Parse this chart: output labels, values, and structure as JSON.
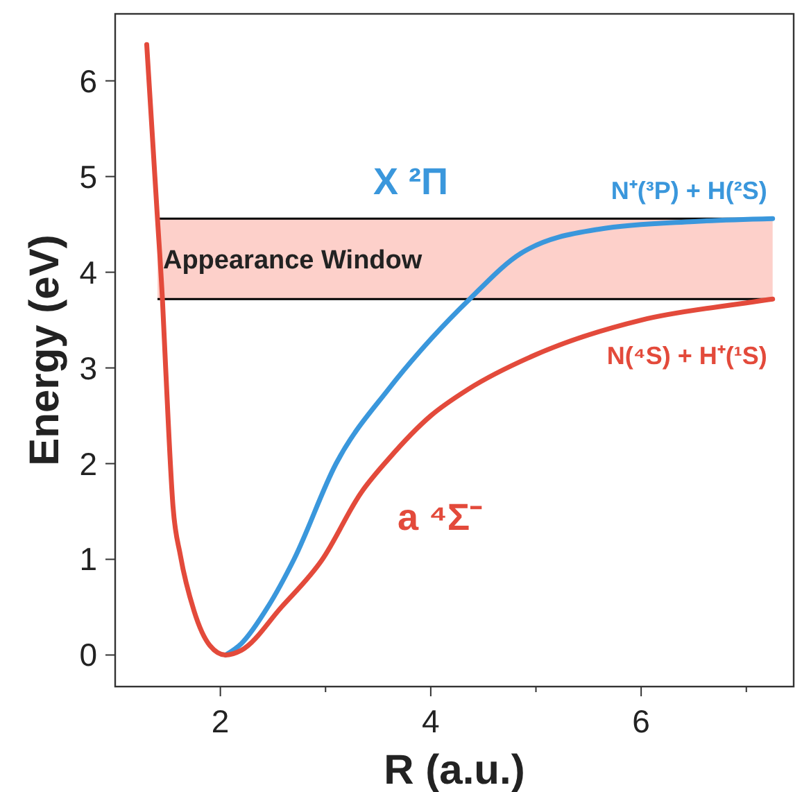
{
  "chart_data": {
    "type": "line",
    "xlabel": "R (a.u.)",
    "ylabel": "Energy (eV)",
    "xlim": [
      1.0,
      7.45
    ],
    "ylim": [
      -0.33,
      6.7
    ],
    "xticks": [
      2,
      {
        "value": 3,
        "label": null
      },
      4,
      {
        "value": 5,
        "label": null
      },
      6,
      {
        "value": 7,
        "label": null
      }
    ],
    "yticks": [
      0,
      1,
      2,
      3,
      4,
      5,
      6
    ],
    "series": [
      {
        "name": "X ²Π",
        "color": "#3a97dc",
        "x": [
          2.05,
          2.2,
          2.45,
          2.7,
          3.1,
          3.6,
          4.0,
          4.37,
          4.86,
          5.6,
          6.5,
          7.25
        ],
        "values": [
          0.0,
          0.12,
          0.5,
          1.0,
          2.0,
          2.78,
          3.3,
          3.72,
          4.2,
          4.45,
          4.53,
          4.56
        ]
      },
      {
        "name": "a ⁴Σ⁻",
        "color": "#e34a3b",
        "x": [
          1.3,
          1.4,
          1.45,
          1.48,
          1.55,
          1.62,
          1.75,
          1.9,
          2.05,
          2.2,
          2.58,
          2.97,
          3.34,
          3.6,
          4.0,
          4.36,
          5.0,
          6.0,
          7.0,
          7.25
        ],
        "values": [
          6.38,
          4.6,
          3.7,
          3.0,
          1.55,
          1.04,
          0.46,
          0.1,
          0.0,
          0.05,
          0.5,
          1.0,
          1.7,
          2.05,
          2.5,
          2.78,
          3.14,
          3.5,
          3.68,
          3.72
        ]
      }
    ],
    "bands": [
      {
        "axis": "y",
        "from": 3.72,
        "to": 4.56,
        "label": "Appearance Window",
        "color": "#fdd0ca"
      }
    ],
    "ref_lines": [
      {
        "axis": "y",
        "value": 3.72,
        "color": "#000000"
      },
      {
        "axis": "y",
        "value": 4.56,
        "color": "#000000"
      }
    ],
    "annotations": [
      {
        "text": "N⁺(³P) + H(²S)",
        "x": 7.25,
        "y": 4.56
      },
      {
        "text": "N(⁴S) + H⁺(¹S)",
        "x": 7.25,
        "y": 3.72
      }
    ]
  }
}
